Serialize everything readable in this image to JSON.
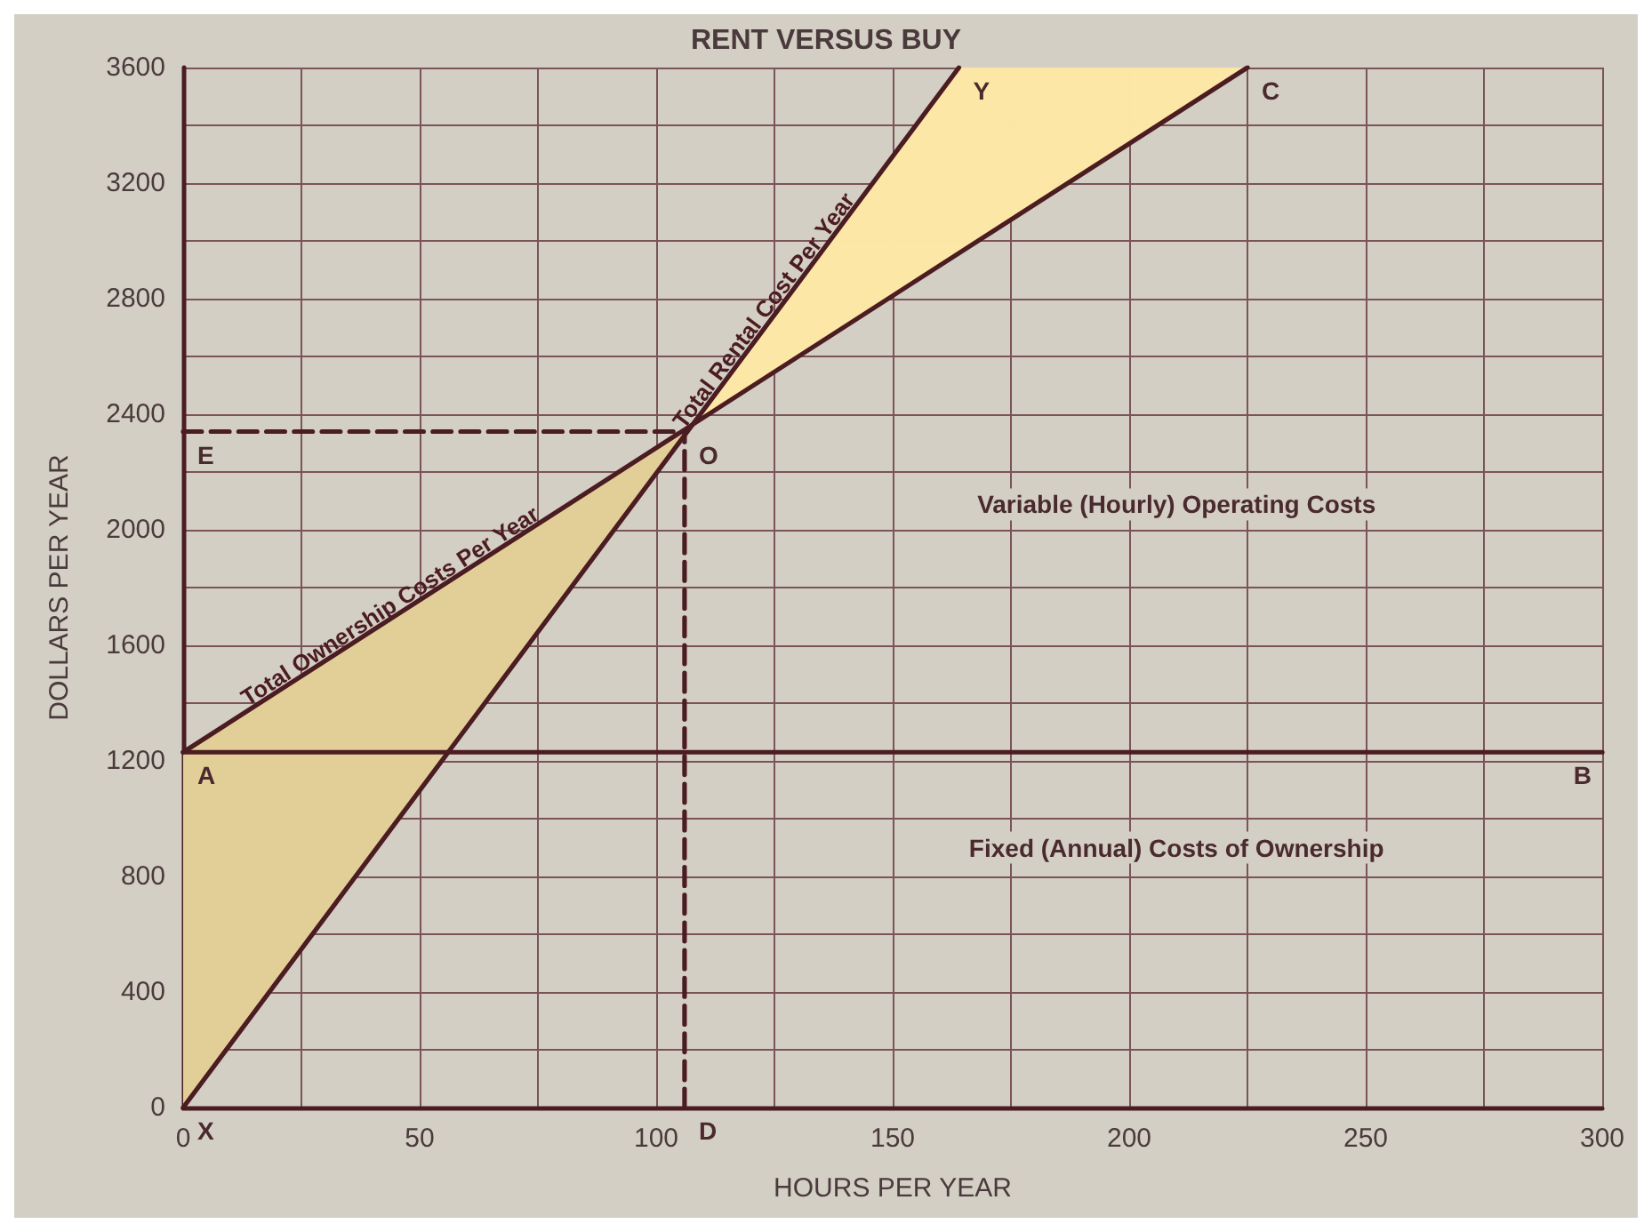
{
  "chart_data": {
    "type": "line",
    "title": "RENT VERSUS BUY",
    "xlabel": "HOURS PER YEAR",
    "ylabel": "DOLLARS PER YEAR",
    "xlim": [
      0,
      300
    ],
    "ylim": [
      0,
      3600
    ],
    "xticks": [
      0,
      {
        "value": 25,
        "label": null
      },
      50,
      {
        "value": 75,
        "label": null
      },
      100,
      {
        "value": 125,
        "label": null
      },
      150,
      {
        "value": 175,
        "label": null
      },
      200,
      {
        "value": 225,
        "label": null
      },
      250,
      {
        "value": 275,
        "label": null
      },
      300
    ],
    "yticks": [
      0,
      {
        "value": 200,
        "label": null
      },
      400,
      {
        "value": 600,
        "label": null
      },
      800,
      {
        "value": 1000,
        "label": null
      },
      1200,
      {
        "value": 1400,
        "label": null
      },
      1600,
      {
        "value": 1800,
        "label": null
      },
      2000,
      {
        "value": 2200,
        "label": null
      },
      2400,
      {
        "value": 2600,
        "label": null
      },
      2800,
      {
        "value": 3000,
        "label": null
      },
      3200,
      {
        "value": 3400,
        "label": null
      },
      3600
    ],
    "grid": true,
    "legend": false,
    "marker": "none",
    "line_style": "solid",
    "series": [
      {
        "name": "Total Ownership Costs Per Year",
        "color": "#4b1c22",
        "x": [
          0,
          225
        ],
        "values": [
          1230,
          3600
        ]
      },
      {
        "name": "Total Rental Cost Per Year",
        "color": "#4b1c22",
        "x": [
          0,
          164
        ],
        "values": [
          0,
          3600
        ]
      },
      {
        "color": "#4b1c22",
        "x": [
          0,
          300
        ],
        "values": [
          1230,
          1230
        ]
      },
      {
        "color": "#4b1c22",
        "line_style": "dashed",
        "x": [
          0,
          106
        ],
        "values": [
          2340,
          2340
        ]
      },
      {
        "color": "#4b1c22",
        "line_style": "dashed",
        "x": [
          106,
          106
        ],
        "values": [
          0,
          2340
        ]
      }
    ],
    "annotations": [
      {
        "text": "A",
        "x": 0,
        "y": 1230
      },
      {
        "text": "B",
        "x": 300,
        "y": 1230
      },
      {
        "text": "C",
        "x": 225,
        "y": 3600
      },
      {
        "text": "Y",
        "x": 164,
        "y": 3600
      },
      {
        "text": "X",
        "x": 0,
        "y": 0
      },
      {
        "text": "O",
        "x": 106,
        "y": 2340
      },
      {
        "text": "E",
        "x": 0,
        "y": 2340
      },
      {
        "text": "D",
        "x": 106,
        "y": 0
      },
      "Variable (Hourly) Operating Costs",
      "Fixed (Annual) Costs of Ownership"
    ]
  }
}
